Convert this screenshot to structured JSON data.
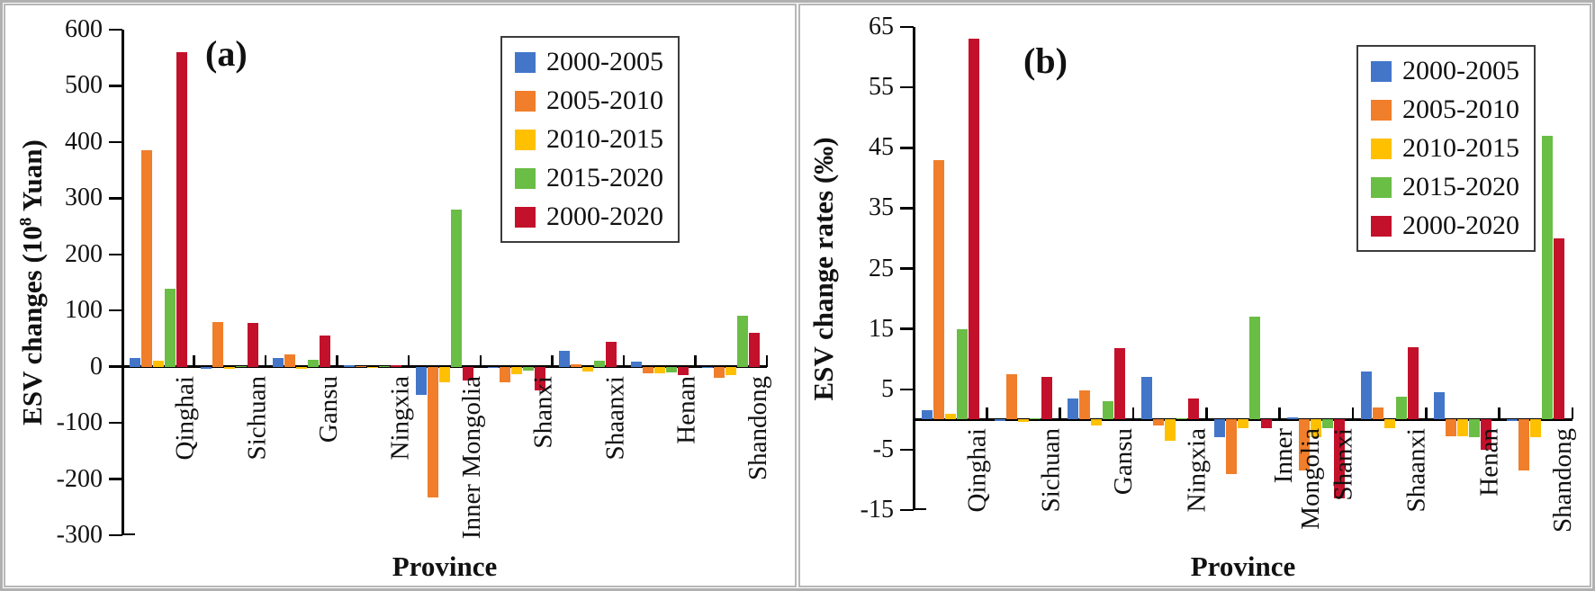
{
  "figure": {
    "background": "#ffffff",
    "outer_border_color": "#b0b0b0",
    "panel_border_color": "#b7b7b7"
  },
  "legend": {
    "position": "upper-right-inside",
    "entries": [
      {
        "label": "2000-2005",
        "color": "#4376C9"
      },
      {
        "label": "2005-2010",
        "color": "#F07E2A"
      },
      {
        "label": "2010-2015",
        "color": "#FFC000"
      },
      {
        "label": "2015-2020",
        "color": "#6ABD45"
      },
      {
        "label": "2000-2020",
        "color": "#C3112B"
      }
    ]
  },
  "chart_data": [
    {
      "type": "bar",
      "panel_label": "(a)",
      "ylabel": "ESV changes (10^8 Yuan)",
      "ylabel_parts": {
        "pre": "ESV changes (10",
        "sup": "8",
        "post": " Yuan)"
      },
      "xlabel": "Province",
      "ylim": [
        -300,
        600
      ],
      "ytick_step": 100,
      "grid": false,
      "legend_position": "upper right",
      "categories": [
        "Qinghai",
        "Sichuan",
        "Gansu",
        "Ningxia",
        "Inner Mongolia",
        "Shanxi",
        "Shaanxi",
        "Henan",
        "Shandong"
      ],
      "series": [
        {
          "name": "2000-2005",
          "color": "#4376C9",
          "values": [
            15,
            -3,
            15,
            2,
            -50,
            -2,
            29,
            9,
            -2
          ]
        },
        {
          "name": "2005-2010",
          "color": "#F07E2A",
          "values": [
            386,
            80,
            22,
            1,
            -232,
            -27,
            5,
            -11,
            -20
          ]
        },
        {
          "name": "2010-2015",
          "color": "#FFC000",
          "values": [
            11,
            -3,
            -3,
            -2,
            -28,
            -14,
            -8,
            -11,
            -15
          ]
        },
        {
          "name": "2015-2020",
          "color": "#6ABD45",
          "values": [
            139,
            1,
            12,
            1,
            280,
            -7,
            11,
            -10,
            90
          ]
        },
        {
          "name": "2000-2020",
          "color": "#C3112B",
          "values": [
            560,
            78,
            55,
            2,
            -25,
            -42,
            45,
            -15,
            60
          ]
        }
      ]
    },
    {
      "type": "bar",
      "panel_label": "(b)",
      "ylabel": "ESV change rates (‰)",
      "ylabel_parts": {
        "pre": "ESV change rates (‰)",
        "sup": "",
        "post": ""
      },
      "xlabel": "Province",
      "ylim": [
        -15,
        65
      ],
      "ytick_step": 10,
      "grid": false,
      "legend_position": "upper right",
      "categories": [
        "Qinghai",
        "Sichuan",
        "Gansu",
        "Ningxia",
        "Inner\nMongolia",
        "Shanxi",
        "Shaanxi",
        "Henan",
        "Shandong"
      ],
      "series": [
        {
          "name": "2000-2005",
          "color": "#4376C9",
          "values": [
            1.5,
            -0.3,
            3.5,
            7,
            -3,
            0.3,
            8,
            4.5,
            -0.3
          ]
        },
        {
          "name": "2005-2010",
          "color": "#F07E2A",
          "values": [
            43,
            7.5,
            4.8,
            -1,
            -9,
            -8.5,
            2,
            -2.8,
            -8.5
          ]
        },
        {
          "name": "2010-2015",
          "color": "#FFC000",
          "values": [
            1,
            -0.4,
            -1,
            -3.5,
            -1.5,
            -3,
            -1.5,
            -2.8,
            -3
          ]
        },
        {
          "name": "2015-2020",
          "color": "#6ABD45",
          "values": [
            15,
            0.2,
            3,
            0.2,
            17,
            -1.5,
            3.8,
            -3,
            47
          ]
        },
        {
          "name": "2000-2020",
          "color": "#C3112B",
          "values": [
            63,
            7,
            11.8,
            3.5,
            -1.5,
            -13,
            12,
            -5,
            30
          ]
        }
      ]
    }
  ]
}
